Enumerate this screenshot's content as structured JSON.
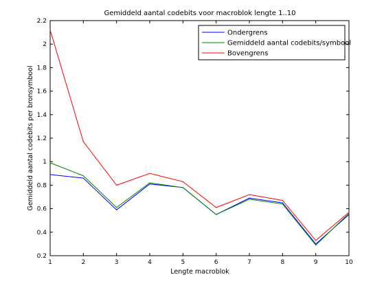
{
  "chart_data": {
    "type": "line",
    "title": "Gemiddeld aantal codebits voor macroblok lengte 1..10",
    "xlabel": "Lengte macroblok",
    "ylabel": "Gemiddeld aantal codebits per bronsymbool",
    "x": [
      1,
      2,
      3,
      4,
      5,
      6,
      7,
      8,
      9,
      10
    ],
    "xlim": [
      1,
      10
    ],
    "ylim": [
      0.2,
      2.2
    ],
    "xticks": [
      1,
      2,
      3,
      4,
      5,
      6,
      7,
      8,
      9,
      10
    ],
    "yticks": [
      0.2,
      0.4,
      0.6,
      0.8,
      1,
      1.2,
      1.4,
      1.6,
      1.8,
      2,
      2.2
    ],
    "grid": false,
    "legend_position": "top-right",
    "series": [
      {
        "name": "Ondergrens",
        "color": "#0000ff",
        "values": [
          0.89,
          0.86,
          0.59,
          0.81,
          0.78,
          0.55,
          0.69,
          0.65,
          0.3,
          0.55
        ]
      },
      {
        "name": "Gemiddeld aantal codebits/symbool",
        "color": "#008000",
        "values": [
          0.99,
          0.88,
          0.61,
          0.82,
          0.78,
          0.55,
          0.68,
          0.64,
          0.29,
          0.56
        ]
      },
      {
        "name": "Bovengrens",
        "color": "#ff0000",
        "values": [
          2.12,
          1.17,
          0.8,
          0.9,
          0.83,
          0.61,
          0.72,
          0.67,
          0.33,
          0.57
        ]
      }
    ]
  }
}
